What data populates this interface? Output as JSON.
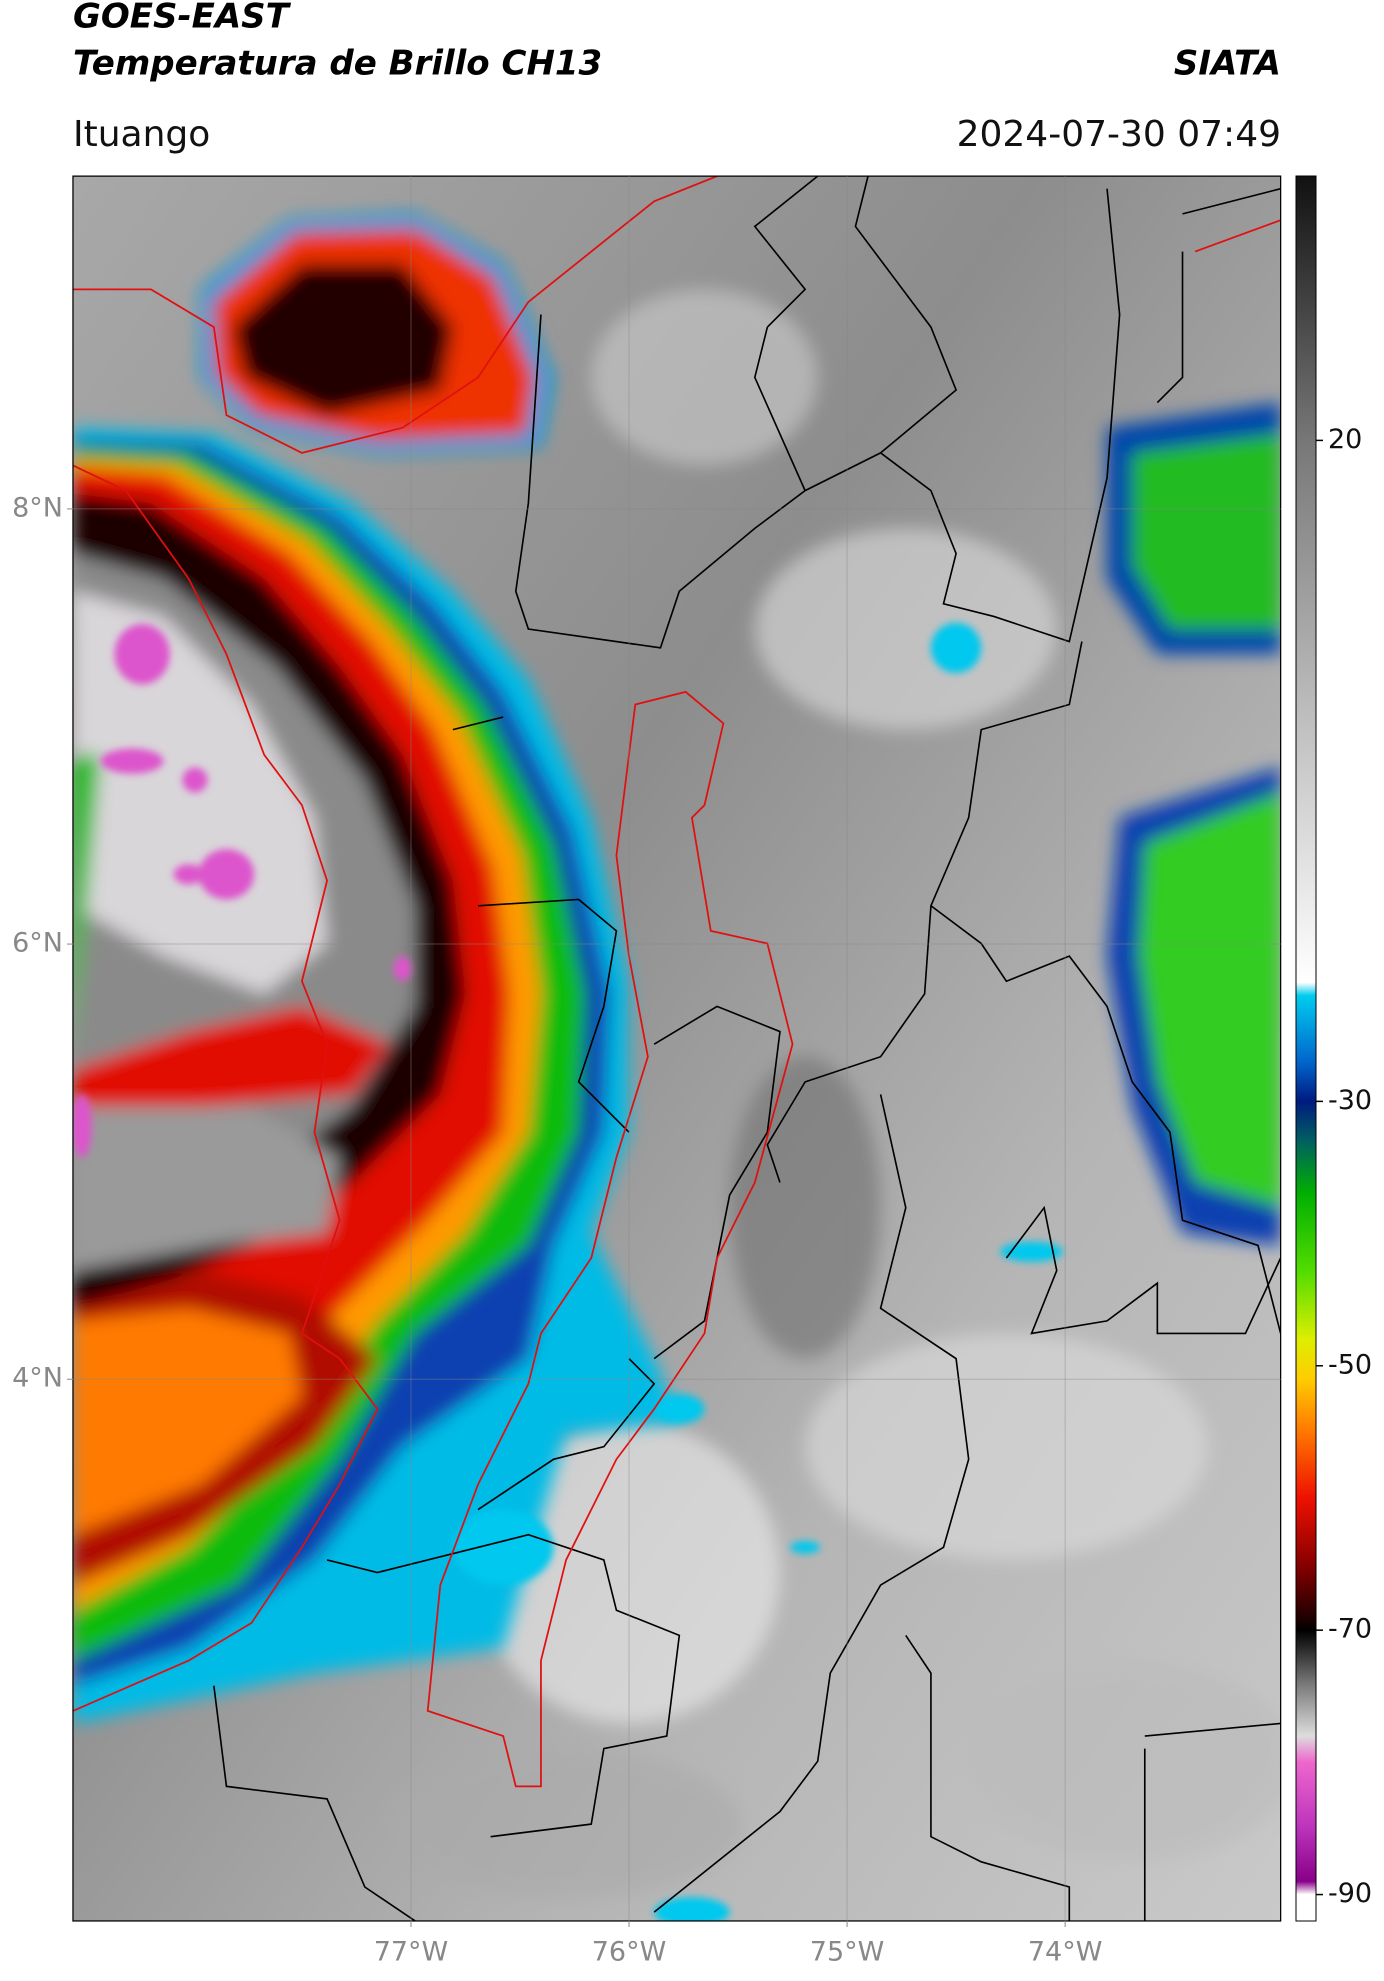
{
  "header": {
    "title": "GOES-EAST",
    "subtitle": "Temperatura de Brillo CH13",
    "agency": "SIATA",
    "location": "Ituango",
    "datetime": "2024-07-30 07:49"
  },
  "map": {
    "xlim": [
      -78.55,
      -73.01
    ],
    "ylim": [
      1.51,
      9.53
    ],
    "xticks": [
      {
        "value": -77,
        "label": "77°W"
      },
      {
        "value": -76,
        "label": "76°W"
      },
      {
        "value": -75,
        "label": "75°W"
      },
      {
        "value": -74,
        "label": "74°W"
      }
    ],
    "yticks": [
      {
        "value": 8,
        "label": "8°N"
      },
      {
        "value": 6,
        "label": "6°N"
      },
      {
        "value": 4,
        "label": "4°N"
      }
    ],
    "grid": true
  },
  "colorbar": {
    "lim": [
      -92,
      40
    ],
    "ticks": [
      20,
      -30,
      -50,
      -70,
      -90
    ],
    "colors": [
      {
        "value": 40,
        "color": "#111111"
      },
      {
        "value": 30,
        "color": "#444444"
      },
      {
        "value": 20,
        "color": "#777777"
      },
      {
        "value": 0,
        "color": "#bbbbbb"
      },
      {
        "value": -21,
        "color": "#ffffff"
      },
      {
        "value": -22,
        "color": "#00ccee"
      },
      {
        "value": -27,
        "color": "#0066cc"
      },
      {
        "value": -30,
        "color": "#001a80"
      },
      {
        "value": -33,
        "color": "#006060"
      },
      {
        "value": -37,
        "color": "#00b000"
      },
      {
        "value": -43,
        "color": "#55dd00"
      },
      {
        "value": -48,
        "color": "#ddee00"
      },
      {
        "value": -51,
        "color": "#ffcc00"
      },
      {
        "value": -55,
        "color": "#ff7700"
      },
      {
        "value": -60,
        "color": "#ee1100"
      },
      {
        "value": -65,
        "color": "#880000"
      },
      {
        "value": -69,
        "color": "#220000"
      },
      {
        "value": -70,
        "color": "#000000"
      },
      {
        "value": -74,
        "color": "#777777"
      },
      {
        "value": -78,
        "color": "#dddddd"
      },
      {
        "value": -80,
        "color": "#ee66cc"
      },
      {
        "value": -85,
        "color": "#bb33bb"
      },
      {
        "value": -89,
        "color": "#880088"
      },
      {
        "value": -90,
        "color": "#ffffff"
      },
      {
        "value": -92,
        "color": "#ffffff"
      }
    ]
  }
}
